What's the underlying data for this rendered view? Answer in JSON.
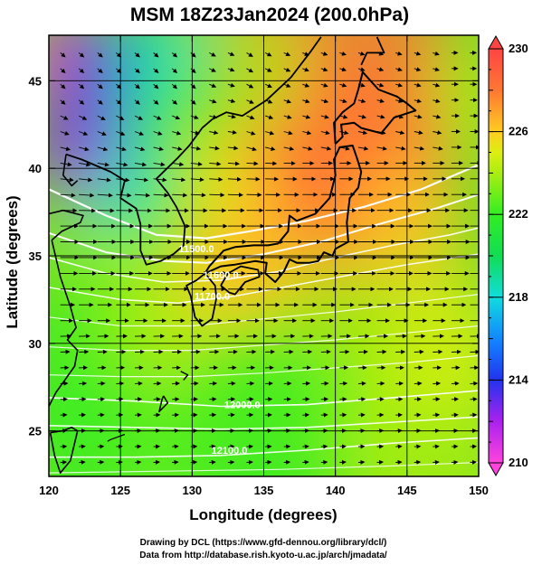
{
  "chart_data": {
    "type": "heatmap",
    "title": "MSM 18Z23Jan2024 (200.0hPa)",
    "xlabel": "Longitude (degrees)",
    "ylabel": "Latitude  (degrees)",
    "xlim": [
      120,
      150
    ],
    "ylim": [
      22.4,
      47.6
    ],
    "x_ticks": [
      "120",
      "125",
      "130",
      "135",
      "140",
      "145",
      "150"
    ],
    "y_ticks": [
      "25",
      "30",
      "35",
      "40",
      "45"
    ],
    "x_tick_values": [
      120,
      125,
      130,
      135,
      140,
      145,
      150
    ],
    "y_tick_values": [
      25,
      30,
      35,
      40,
      45
    ],
    "grid": true,
    "colorbar": {
      "min": 210,
      "max": 230,
      "labels": [
        "230",
        "226",
        "222",
        "218",
        "214",
        "210"
      ],
      "label_values": [
        230,
        226,
        222,
        218,
        214,
        210
      ],
      "color_stops": [
        {
          "value": 210,
          "color": "#ff44dd"
        },
        {
          "value": 212,
          "color": "#aa22ee"
        },
        {
          "value": 214,
          "color": "#2233ee"
        },
        {
          "value": 216,
          "color": "#1188ff"
        },
        {
          "value": 218,
          "color": "#11dddd"
        },
        {
          "value": 220,
          "color": "#11dd55"
        },
        {
          "value": 222,
          "color": "#33ee22"
        },
        {
          "value": 224,
          "color": "#aaee11"
        },
        {
          "value": 225,
          "color": "#ddee11"
        },
        {
          "value": 226,
          "color": "#ffcc22"
        },
        {
          "value": 228,
          "color": "#ff7733"
        },
        {
          "value": 230,
          "color": "#ff4444"
        }
      ]
    },
    "field_features": {
      "cold_core": {
        "lon": 120,
        "lat": 47.5,
        "value": 210
      },
      "warm_core": {
        "lon": 137.5,
        "lat": 37.5,
        "value": 229.5
      }
    },
    "contour_labels": [
      {
        "text": "11500.0",
        "lon": 130.3,
        "lat": 35.2
      },
      {
        "text": "11600.0",
        "lon": 132.0,
        "lat": 33.7
      },
      {
        "text": "11700.0",
        "lon": 131.4,
        "lat": 32.5
      },
      {
        "text": "12000.0",
        "lon": 133.5,
        "lat": 26.3
      },
      {
        "text": "12100.0",
        "lon": 132.6,
        "lat": 23.7
      }
    ],
    "wind": "vector arrows, predominantly westerly, stronger jet along 33-37N"
  },
  "credits": {
    "line1": "Drawing by DCL (https://www.gfd-dennou.org/library/dcl/)",
    "line2": "Data from http://database.rish.kyoto-u.ac.jp/arch/jmadata/"
  }
}
